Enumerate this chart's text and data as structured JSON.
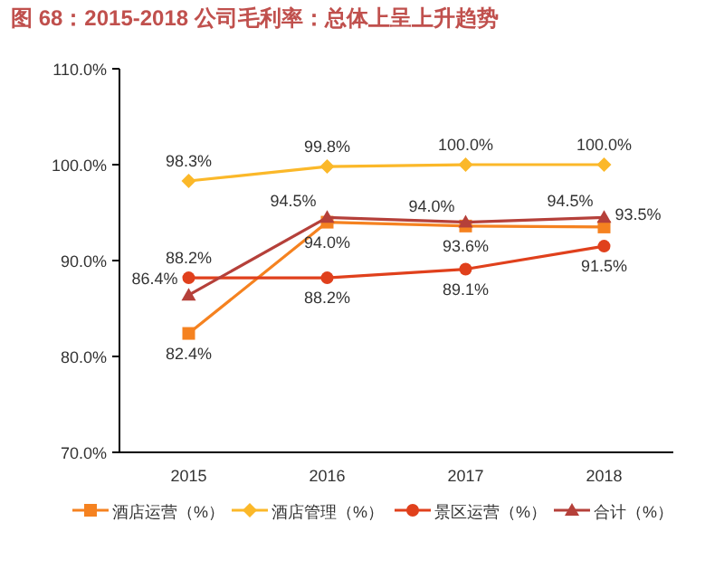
{
  "chart_data": {
    "type": "line",
    "title": "图 68：2015-2018 公司毛利率：总体上呈上升趋势",
    "categories": [
      "2015",
      "2016",
      "2017",
      "2018"
    ],
    "ylim": [
      70,
      110
    ],
    "yticks": [
      {
        "value": 70,
        "label": "70.0%"
      },
      {
        "value": 80,
        "label": "80.0%"
      },
      {
        "value": 90,
        "label": "90.0%"
      },
      {
        "value": 100,
        "label": "100.0%"
      },
      {
        "value": 110,
        "label": "110.0%"
      }
    ],
    "grid": false,
    "legend": "bottom",
    "series": [
      {
        "name": "酒店运营（%）",
        "color": "#f58220",
        "marker": "square",
        "values": [
          82.4,
          94.0,
          93.6,
          93.5
        ],
        "value_labels": [
          "82.4%",
          "94.0%",
          "93.6%",
          "93.5%"
        ]
      },
      {
        "name": "酒店管理（%）",
        "color": "#fbb829",
        "marker": "diamond",
        "values": [
          98.3,
          99.8,
          100.0,
          100.0
        ],
        "value_labels": [
          "98.3%",
          "99.8%",
          "100.0%",
          "100.0%"
        ]
      },
      {
        "name": "景区运营（%）",
        "color": "#e0401c",
        "marker": "circle",
        "values": [
          88.2,
          88.2,
          89.1,
          91.5
        ],
        "value_labels": [
          "88.2%",
          "88.2%",
          "89.1%",
          "91.5%"
        ]
      },
      {
        "name": "合计（%）",
        "color": "#b5403a",
        "marker": "triangle",
        "values": [
          86.4,
          94.5,
          94.0,
          94.5
        ],
        "value_labels": [
          "86.4%",
          "94.5%",
          "94.0%",
          "94.5%"
        ]
      }
    ]
  }
}
